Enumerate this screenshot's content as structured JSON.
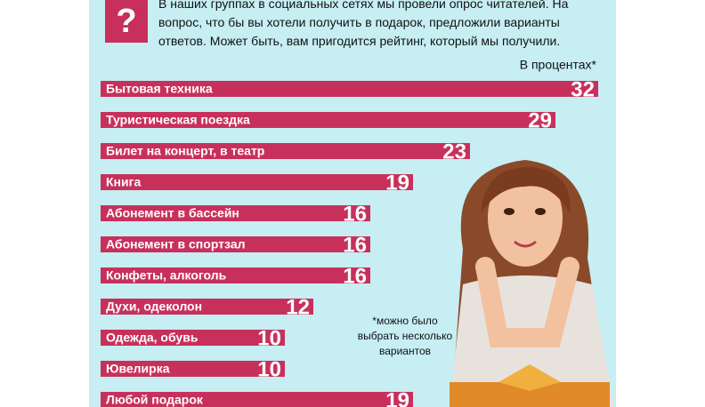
{
  "header": {
    "icon": "?",
    "intro_lines": [
      "В наших группах в социальных сетях мы провели опрос читателей. На",
      "вопрос, что бы вы хотели получить в подарок, предложили варианты",
      "ответов. Может быть, вам пригодится рейтинг, который мы получили."
    ]
  },
  "chart_data": {
    "type": "bar",
    "orientation": "horizontal",
    "unit_label": "В процентах*",
    "categories": [
      "Бытовая техника",
      "Туристическая поездка",
      "Билет на концерт, в театр",
      "Книга",
      "Абонемент в бассейн",
      "Абонемент в спортзал",
      "Конфеты, алкоголь",
      "Духи, одеколон",
      "Одежда, обувь",
      "Ювелирка",
      "Любой подарок"
    ],
    "values": [
      32,
      29,
      23,
      19,
      16,
      16,
      16,
      12,
      10,
      10,
      19
    ],
    "color": "#c8305c",
    "footnote_lines": [
      "*можно было",
      "выбрать несколько",
      "вариантов"
    ]
  }
}
